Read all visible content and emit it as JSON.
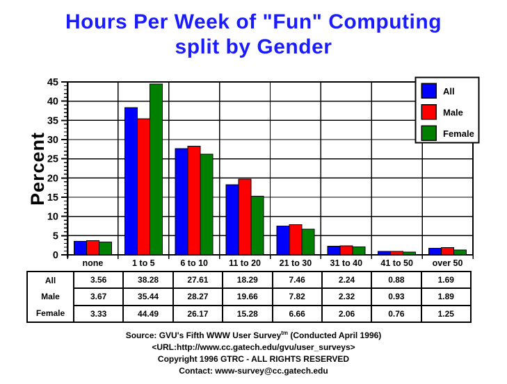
{
  "title": {
    "line1": "Hours Per Week of \"Fun\" Computing",
    "line2": "split by Gender"
  },
  "colors": {
    "title_blue": "#1b1bff",
    "all_series": "#0000ff",
    "male_series": "#ff0000",
    "female_series": "#008000",
    "axis_and_text": "#000000",
    "background": "#ffffff"
  },
  "chart_data": {
    "type": "bar",
    "title": "Hours Per Week of \"Fun\" Computing split by Gender",
    "categories": [
      "none",
      "1 to 5",
      "6 to 10",
      "11 to 20",
      "21 to 30",
      "31 to 40",
      "41 to 50",
      "over 50"
    ],
    "series": [
      {
        "name": "All",
        "color": "#0000ff",
        "values": [
          3.56,
          38.28,
          27.61,
          18.29,
          7.46,
          2.24,
          0.88,
          1.69
        ]
      },
      {
        "name": "Male",
        "color": "#ff0000",
        "values": [
          3.67,
          35.44,
          28.27,
          19.66,
          7.82,
          2.32,
          0.93,
          1.89
        ]
      },
      {
        "name": "Female",
        "color": "#008000",
        "values": [
          3.33,
          44.49,
          26.17,
          15.28,
          6.66,
          2.06,
          0.76,
          1.25
        ]
      }
    ],
    "xlabel": "",
    "ylabel": "Percent",
    "ylim": [
      0,
      45
    ],
    "ytick_step": 5,
    "minor_tick_step": 1,
    "grid": true,
    "legend_position": "top-right",
    "legend_labels": [
      "All",
      "Male",
      "Female"
    ]
  },
  "footer": {
    "source_prefix": "Source: GVU's Fifth WWW User Survey",
    "source_sup": "tm",
    "source_suffix": "  (Conducted April 1996)",
    "url_line": "<URL:http://www.cc.gatech.edu/gvu/user_surveys>",
    "copyright_line": "Copyright 1996 GTRC -  ALL RIGHTS RESERVED",
    "contact_line": "Contact: www-survey@cc.gatech.edu"
  }
}
